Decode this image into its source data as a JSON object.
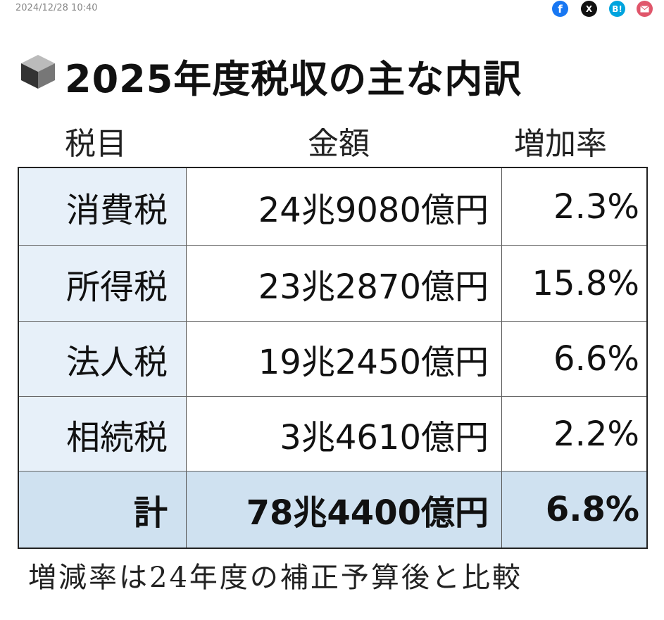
{
  "timestamp": "2024/12/28 10:40",
  "share_buttons": [
    "f",
    "X",
    "B!"
  ],
  "title": "2025年度税収の主な内訳",
  "table": {
    "header": [
      "税目",
      "金額",
      "増加率"
    ],
    "rows": [
      [
        "消費税",
        "24兆9080億円",
        "2.3%"
      ],
      [
        "所得税",
        "23兆2870億円",
        "15.8%"
      ],
      [
        "法人税",
        "19兆2450億円",
        "6.6%"
      ],
      [
        "相続税",
        "3兆4610億円",
        "2.2%"
      ],
      [
        "計",
        "78兆4400億円",
        "6.8%"
      ]
    ]
  },
  "note": "増減率は24年度の補正予算後と比較"
}
